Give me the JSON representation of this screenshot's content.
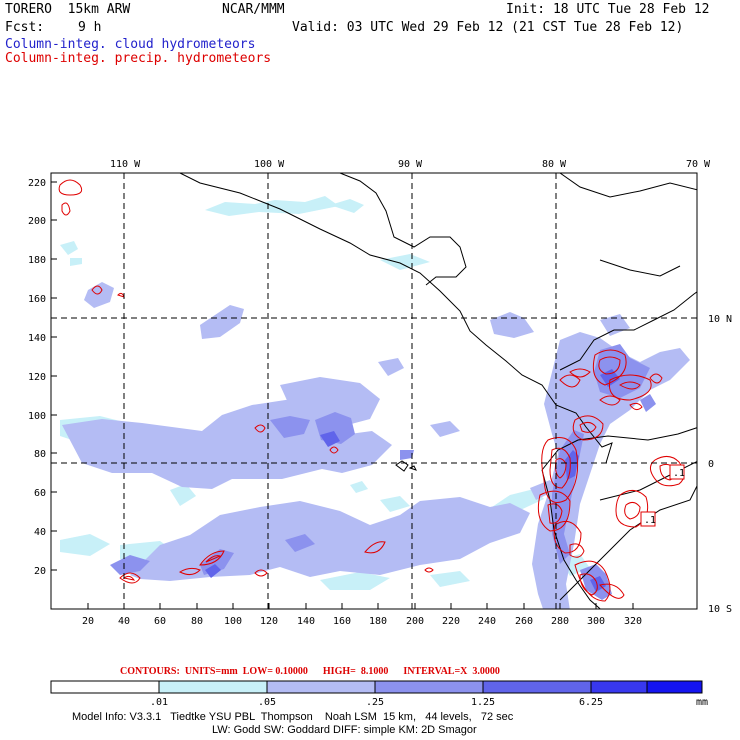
{
  "header": {
    "model": "TORERO  15km ARW",
    "org": "NCAR/MMM",
    "init": "Init: 18 UTC Tue 28 Feb 12",
    "fcst_label": "Fcst:",
    "fcst_value": "9 h",
    "valid": "Valid: 03 UTC Wed 29 Feb 12 (21 CST Tue 28 Feb 12)",
    "field_cloud": "Column-integ. cloud hydrometeors",
    "field_precip": "Column-integ. precip. hydrometeors"
  },
  "colors": {
    "cloud_title": "#2222cc",
    "precip_title": "#dd0000",
    "shade_1": "#c8f0f8",
    "shade_2": "#b4bcf4",
    "shade_3": "#8c92ee",
    "shade_4": "#6064ea",
    "shade_5": "#3838ee",
    "shade_6": "#1414f0",
    "contour": "#e00000"
  },
  "map": {
    "lon_labels": [
      "110 W",
      "100 W",
      "90 W",
      "80 W",
      "70 W"
    ],
    "lat_labels": [
      "10 N",
      "0",
      "10 S"
    ],
    "x_ticks": [
      "20",
      "40",
      "60",
      "80",
      "100",
      "120",
      "140",
      "160",
      "180",
      "200",
      "220",
      "240",
      "260",
      "280",
      "300",
      "320"
    ],
    "y_ticks": [
      "220",
      "200",
      "180",
      "160",
      "140",
      "120",
      "100",
      "80",
      "60",
      "40",
      "20"
    ],
    "contour_labels": [
      ".1",
      ".1"
    ]
  },
  "contour_info": "CONTOURS:  UNITS=mm  LOW= 0.10000      HIGH=  8.1000      INTERVAL=X  3.0000",
  "legend": {
    "labels": [
      ".01",
      ".05",
      ".25",
      "1.25",
      "6.25"
    ],
    "unit": "mm"
  },
  "model_info": {
    "line1": "Model Info: V3.3.1   Tiedtke YSU PBL  Thompson    Noah LSM  15 km,   44 levels,   72 sec",
    "line2": "LW: Godd SW: Goddard DIFF: simple KM: 2D Smagor"
  }
}
